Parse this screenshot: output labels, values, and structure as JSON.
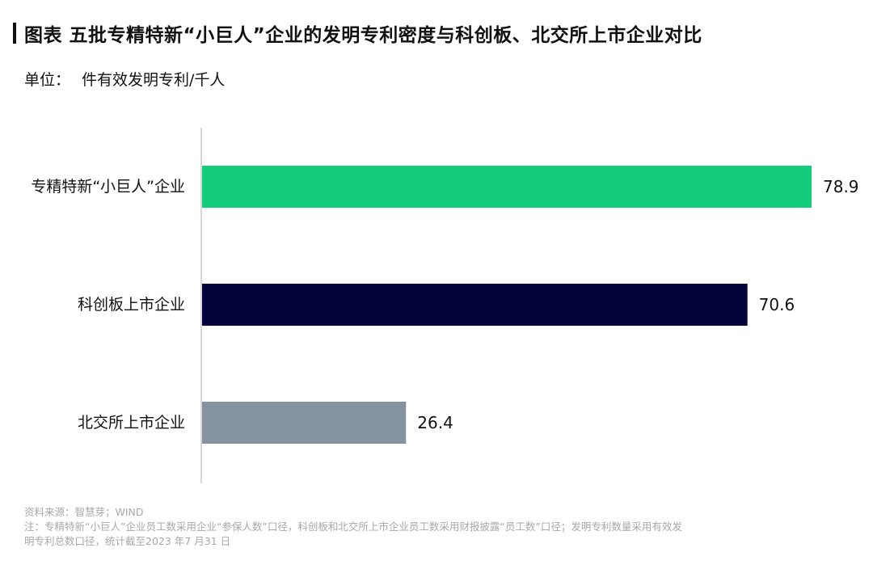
{
  "header": {
    "title": "图表 五批专精特新“小巨人”企业的发明专利密度与科创板、北交所上市企业对比",
    "unit_label": "单位：",
    "unit_value": "件有效发明专利/千人"
  },
  "chart_data": {
    "type": "bar",
    "orientation": "horizontal",
    "title": "图表 五批专精特新“小巨人”企业的发明专利密度与科创板、北交所上市企业对比",
    "xlabel": "",
    "ylabel": "",
    "xlim": [
      0,
      80
    ],
    "grid": false,
    "legend": "none",
    "categories": [
      "专精特新“小巨人”企业",
      "科创板上市企业",
      "北交所上市企业"
    ],
    "values": [
      78.9,
      70.6,
      26.4
    ],
    "value_labels": [
      "78.9",
      "70.6",
      "26.4"
    ],
    "colors": [
      "#13cc7b",
      "#03023b",
      "#84939f"
    ]
  },
  "footer": {
    "source": "资料来源：智慧芽；WIND",
    "note_line1": "注：专精特新“小巨人”企业员工数采用企业“参保人数”口径，科创板和北交所上市企业员工数采用财报披露“员工数”口径；发明专利数量采用有效发",
    "note_line2": "明专利总数口径，统计截至2023 年7 月31 日"
  }
}
